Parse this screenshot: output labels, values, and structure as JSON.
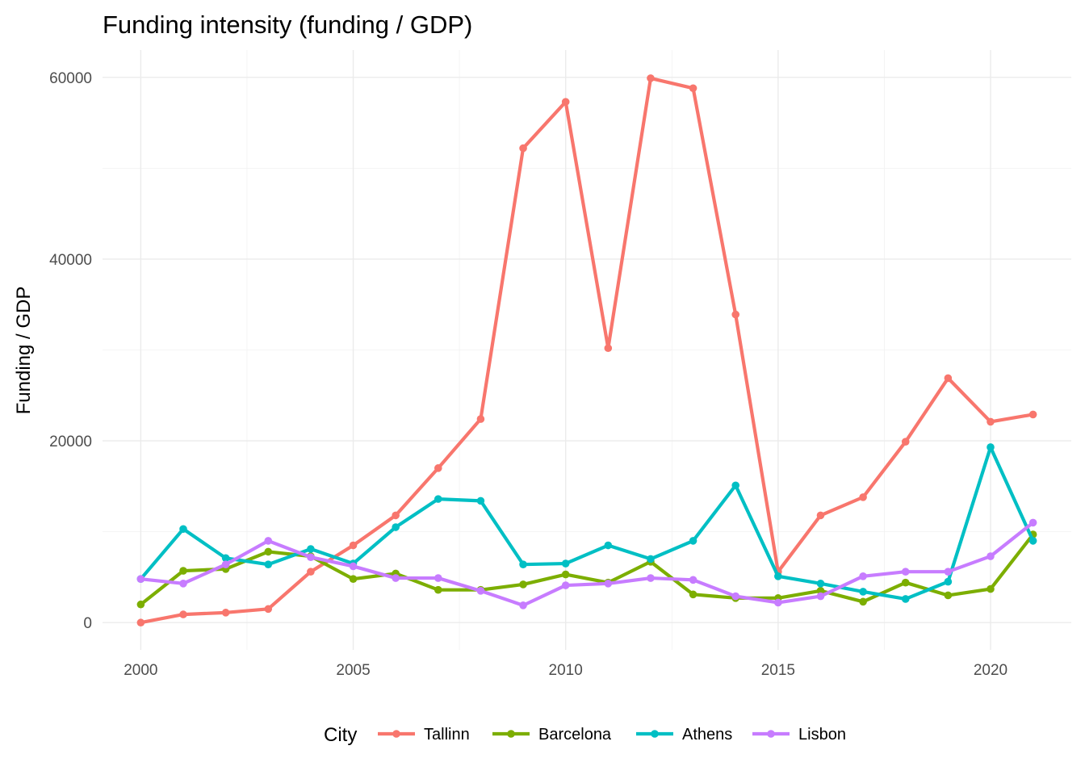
{
  "chart_data": {
    "type": "line",
    "title": "Funding intensity (funding / GDP)",
    "xlabel": "",
    "ylabel": "Funding / GDP",
    "xlim": [
      1999.1,
      2021.9
    ],
    "ylim": [
      -3000,
      63000
    ],
    "x_ticks": [
      2000,
      2005,
      2010,
      2015,
      2020
    ],
    "y_ticks": [
      0,
      20000,
      40000,
      60000
    ],
    "grid": true,
    "legend_title": "City",
    "legend_position": "bottom",
    "x": [
      2000,
      2001,
      2002,
      2003,
      2004,
      2005,
      2006,
      2007,
      2008,
      2009,
      2010,
      2011,
      2012,
      2013,
      2014,
      2015,
      2016,
      2017,
      2018,
      2019,
      2020,
      2021
    ],
    "series": [
      {
        "name": "Tallinn",
        "color": "#F8766D",
        "values": [
          0,
          900,
          1100,
          1500,
          5600,
          8500,
          11800,
          17000,
          22400,
          52200,
          57300,
          30200,
          59900,
          58800,
          33900,
          5600,
          11800,
          13800,
          19900,
          26900,
          22100,
          22900
        ]
      },
      {
        "name": "Barcelona",
        "color": "#7CAE00",
        "values": [
          2000,
          5700,
          5900,
          7800,
          7300,
          4800,
          5400,
          3600,
          3600,
          4200,
          5300,
          4400,
          6700,
          3100,
          2700,
          2700,
          3500,
          2300,
          4400,
          3000,
          3700,
          9700
        ]
      },
      {
        "name": "Athens",
        "color": "#00BFC4",
        "values": [
          4800,
          10300,
          7100,
          6400,
          8100,
          6500,
          10500,
          13600,
          13400,
          6400,
          6500,
          8500,
          7000,
          9000,
          15100,
          5100,
          4300,
          3400,
          2600,
          4500,
          19300,
          9000
        ]
      },
      {
        "name": "Lisbon",
        "color": "#C77CFF",
        "values": [
          4800,
          4300,
          6400,
          9000,
          7200,
          6200,
          4900,
          4900,
          3500,
          1900,
          4100,
          4300,
          4900,
          4700,
          2900,
          2200,
          2900,
          5100,
          5600,
          5600,
          7300,
          11000
        ]
      }
    ]
  }
}
